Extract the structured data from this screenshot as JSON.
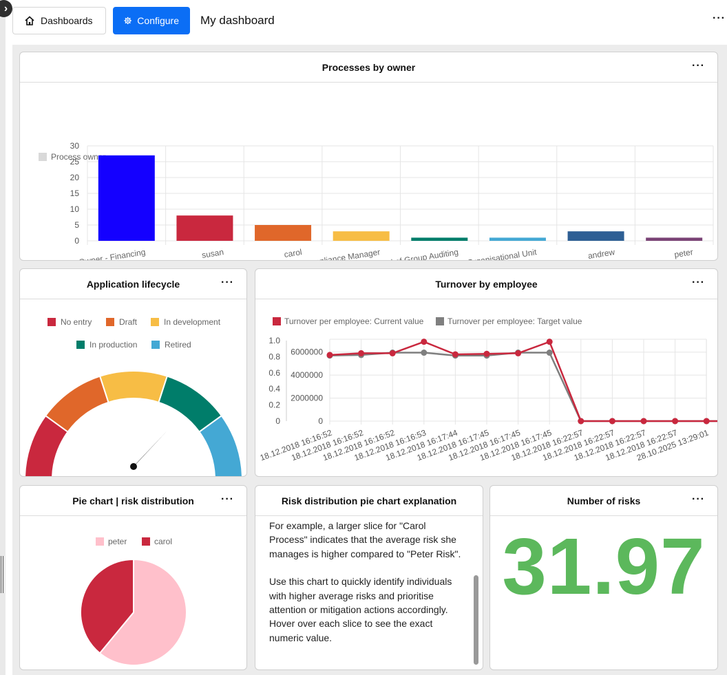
{
  "topbar": {
    "dashboards_label": "Dashboards",
    "configure_label": "Configure",
    "page_title": "My dashboard",
    "more": "···"
  },
  "colors": {
    "accent": "#0b6ef5",
    "big_number": "#5cb85c"
  },
  "widgets": {
    "processes": {
      "title": "Processes by owner",
      "more": "···"
    },
    "lifecycle": {
      "title": "Application lifecycle",
      "more": "···"
    },
    "turnover": {
      "title": "Turnover by employee",
      "more": "···"
    },
    "pie": {
      "title": "Pie chart | risk distribution",
      "more": "···"
    },
    "explanation": {
      "title": "Risk distribution pie chart explanation",
      "para1": "For example, a larger slice for \"Carol Process\" indicates that the average risk she manages is higher compared to \"Peter Risk\".",
      "para2": "Use this chart to quickly identify individuals with higher average risks and prioritise attention or mitigation actions accordingly. Hover over each slice to see the exact numeric value."
    },
    "risks": {
      "title": "Number of risks",
      "more": "···",
      "value": "31.97"
    }
  },
  "chart_data": [
    {
      "type": "bar",
      "legend": [
        "Process owner"
      ],
      "categories": [
        "Process Owner - Financing",
        "susan",
        "carol",
        "Compliance Manager",
        "Head of Group Auditing",
        "Head of Organisational Unit",
        "andrew",
        "peter"
      ],
      "values": [
        27,
        8,
        5,
        3,
        1,
        1,
        3,
        1
      ],
      "colors": [
        "#1400ff",
        "#c9283e",
        "#e0672a",
        "#f7bd45",
        "#007d6a",
        "#44a8d4",
        "#2e5f94",
        "#7a4376"
      ],
      "yticks": [
        0,
        5,
        10,
        15,
        20,
        25,
        30
      ],
      "ylim": [
        0,
        30
      ]
    },
    {
      "type": "gauge",
      "legend": [
        {
          "name": "No entry",
          "color": "#c9283e"
        },
        {
          "name": "Draft",
          "color": "#e0672a"
        },
        {
          "name": "In development",
          "color": "#f7bd45"
        },
        {
          "name": "In production",
          "color": "#007d6a"
        },
        {
          "name": "Retired",
          "color": "#44a8d4"
        }
      ],
      "needle_fraction": 0.74
    },
    {
      "type": "line",
      "series": [
        {
          "name": "Turnover per employee: Current value",
          "color": "#c9283e",
          "values": [
            5750000,
            5900000,
            5900000,
            6900000,
            5800000,
            5850000,
            5900000,
            6900000,
            0,
            0,
            0,
            0,
            0,
            0
          ]
        },
        {
          "name": "Turnover per employee: Target value",
          "color": "#7f7f7f",
          "values": [
            5700000,
            5750000,
            5950000,
            5950000,
            5700000,
            5700000,
            5950000,
            5950000,
            0,
            0,
            0,
            0,
            0,
            0
          ]
        }
      ],
      "categories": [
        "18.12.2018 16:16:52",
        "18.12.2018 16:16:52",
        "18.12.2018 16:16:52",
        "18.12.2018 16:16:53",
        "18.12.2018 16:17:44",
        "18.12.2018 16:17:45",
        "18.12.2018 16:17:45",
        "18.12.2018 16:17:45",
        "18.12.2018 16:22:57",
        "18.12.2018 16:22:57",
        "18.12.2018 16:22:57",
        "18.12.2018 16:22:57",
        "28.10.2025 13:29:01",
        ""
      ],
      "yticks_left": [
        "0",
        "0.2",
        "0.4",
        "0.6",
        "0.8",
        "1.0"
      ],
      "yticks_right": [
        "0",
        "2000000",
        "4000000",
        "6000000"
      ],
      "ylim": [
        0,
        7000000
      ]
    },
    {
      "type": "pie",
      "legend": [
        {
          "name": "peter",
          "color": "#ffc0cb"
        },
        {
          "name": "carol",
          "color": "#c9283e"
        }
      ],
      "values": [
        61,
        39
      ]
    }
  ]
}
